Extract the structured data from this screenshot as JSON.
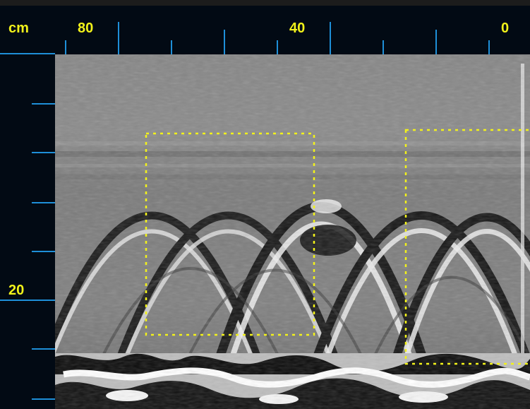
{
  "colors": {
    "background": "#1c1c1c",
    "ruler_panel": "#020a14",
    "tick": "#1e8fd8",
    "label": "#f2f21a",
    "roi_outline": "#f2f21a"
  },
  "ruler": {
    "unit_label": "cm",
    "top_labels": [
      "80",
      "40",
      "0"
    ],
    "left_labels": [
      "20"
    ]
  },
  "scan": {
    "description_icon": "gpr-radargram-image",
    "regions_of_interest": 2
  }
}
